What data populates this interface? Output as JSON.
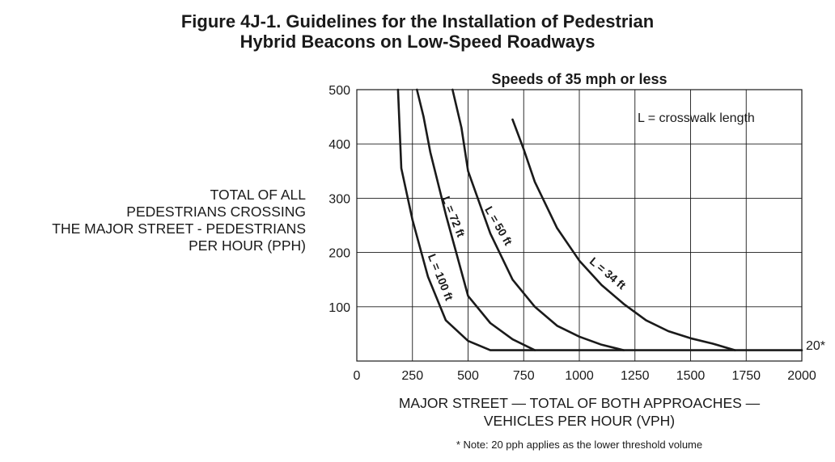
{
  "title_lines": [
    "Figure 4J-1.  Guidelines for the Installation of Pedestrian",
    "Hybrid Beacons on Low-Speed Roadways"
  ],
  "ylabel_lines": [
    "TOTAL OF ALL",
    "PEDESTRIANS CROSSING",
    "THE MAJOR STREET - PEDESTRIANS",
    "PER HOUR (PPH)"
  ],
  "xlabel_lines": [
    "MAJOR STREET — TOTAL OF BOTH APPROACHES —",
    "VEHICLES PER HOUR (VPH)"
  ],
  "footnote": "* Note: 20 pph applies as the lower threshold volume",
  "chart_data": {
    "type": "line",
    "subtitle": "Speeds of 35 mph or less",
    "annotation": "L = crosswalk length",
    "threshold_label": "20*",
    "threshold_value": 20,
    "xlim": [
      0,
      2000
    ],
    "ylim": [
      0,
      500
    ],
    "xticks": [
      0,
      250,
      500,
      750,
      1000,
      1250,
      1500,
      1750,
      2000
    ],
    "yticks": [
      100,
      200,
      300,
      400,
      500
    ],
    "grid": true,
    "line_color": "#1a1a1a",
    "series": [
      {
        "name": "L = 100 ft",
        "x": [
          185,
          200,
          250,
          320,
          400,
          500,
          600,
          2000
        ],
        "y": [
          500,
          355,
          260,
          155,
          75,
          37,
          20,
          20
        ]
      },
      {
        "name": "L = 72 ft",
        "x": [
          270,
          300,
          330,
          400,
          500,
          600,
          700,
          800
        ],
        "y": [
          500,
          450,
          385,
          270,
          120,
          70,
          40,
          20
        ]
      },
      {
        "name": "L = 50 ft",
        "x": [
          430,
          470,
          500,
          600,
          700,
          800,
          900,
          1000,
          1100,
          1200
        ],
        "y": [
          500,
          430,
          350,
          235,
          150,
          100,
          65,
          45,
          30,
          20
        ]
      },
      {
        "name": "L = 34 ft",
        "x": [
          700,
          750,
          800,
          900,
          1000,
          1100,
          1200,
          1300,
          1400,
          1500,
          1600,
          1700
        ],
        "y": [
          445,
          390,
          330,
          245,
          185,
          140,
          105,
          75,
          55,
          42,
          32,
          20
        ]
      }
    ]
  }
}
